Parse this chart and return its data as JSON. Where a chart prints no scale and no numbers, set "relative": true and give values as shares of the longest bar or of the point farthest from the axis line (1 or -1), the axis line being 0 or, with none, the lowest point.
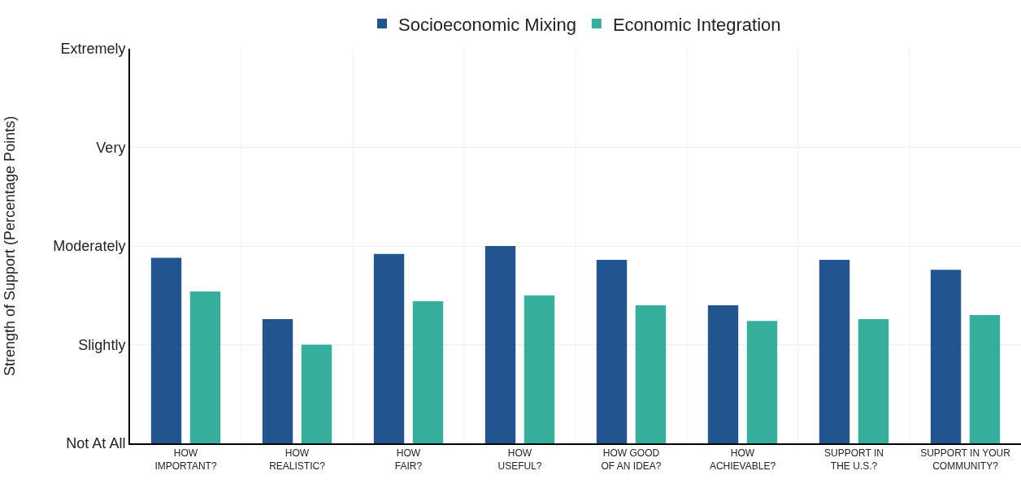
{
  "chart_data": {
    "type": "bar",
    "relative": true,
    "categories": [
      "HOW\nIMPORTANT?",
      "HOW\nREALISTIC?",
      "HOW\nFAIR?",
      "HOW\nUSEFUL?",
      "HOW GOOD\nOF AN IDEA?",
      "HOW\nACHIEVABLE?",
      "SUPPORT IN\nTHE U.S.?",
      "SUPPORT IN YOUR\nCOMMUNITY?"
    ],
    "series": [
      {
        "name": "Socioeconomic Mixing",
        "color": "#22548f",
        "values": [
          0.94,
          0.63,
          0.96,
          1,
          0.93,
          0.7,
          0.93,
          0.88
        ]
      },
      {
        "name": "Economic Integration",
        "color": "#35ae9b",
        "values": [
          0.77,
          0.5,
          0.72,
          0.75,
          0.7,
          0.62,
          0.63,
          0.65
        ]
      }
    ],
    "annotations": [
      "Strength of Support (Percentage Points)",
      "Not At All",
      "Slightly",
      "Moderately",
      "Very",
      "Extremely"
    ],
    "grid": true,
    "legend": "top"
  }
}
